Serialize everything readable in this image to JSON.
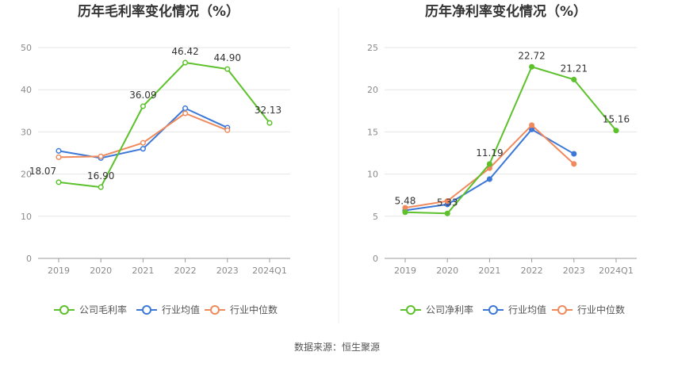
{
  "source": "数据来源：恒生聚源",
  "chart_data": [
    {
      "type": "line",
      "title": "历年毛利率变化情况（%）",
      "categories": [
        "2019",
        "2020",
        "2021",
        "2022",
        "2023",
        "2024Q1"
      ],
      "ylim": [
        0,
        50
      ],
      "yticks": [
        "0",
        "10",
        "20",
        "30",
        "40",
        "50"
      ],
      "grid": true,
      "legend_position": "bottom",
      "series": [
        {
          "name": "公司毛利率",
          "color": "#5cc12b",
          "values": [
            18.07,
            16.9,
            36.09,
            46.42,
            44.9,
            32.13
          ],
          "labels": [
            "18.07",
            "16.90",
            "36.09",
            "46.42",
            "44.90",
            "32.13"
          ]
        },
        {
          "name": "行业均值",
          "color": "#3b78d8",
          "values": [
            25.5,
            23.8,
            26.0,
            35.6,
            31.0,
            null
          ],
          "labels": []
        },
        {
          "name": "行业中位数",
          "color": "#f08a5d",
          "values": [
            24.0,
            24.2,
            27.4,
            34.4,
            30.4,
            null
          ],
          "labels": []
        }
      ]
    },
    {
      "type": "line",
      "title": "历年净利率变化情况（%）",
      "categories": [
        "2019",
        "2020",
        "2021",
        "2022",
        "2023",
        "2024Q1"
      ],
      "ylim": [
        0,
        25
      ],
      "yticks": [
        "0",
        "5",
        "10",
        "15",
        "20",
        "25"
      ],
      "grid": true,
      "legend_position": "bottom",
      "series": [
        {
          "name": "公司净利率",
          "color": "#5cc12b",
          "values": [
            5.48,
            5.33,
            11.19,
            22.72,
            21.21,
            15.16
          ],
          "labels": [
            "5.48",
            "5.33",
            "11.19",
            "22.72",
            "21.21",
            "15.16"
          ]
        },
        {
          "name": "行业均值",
          "color": "#3b78d8",
          "values": [
            5.7,
            6.4,
            9.4,
            15.3,
            12.4,
            null
          ],
          "labels": []
        },
        {
          "name": "行业中位数",
          "color": "#f08a5d",
          "values": [
            6.0,
            6.8,
            10.7,
            15.8,
            11.2,
            null
          ],
          "labels": []
        }
      ]
    }
  ]
}
